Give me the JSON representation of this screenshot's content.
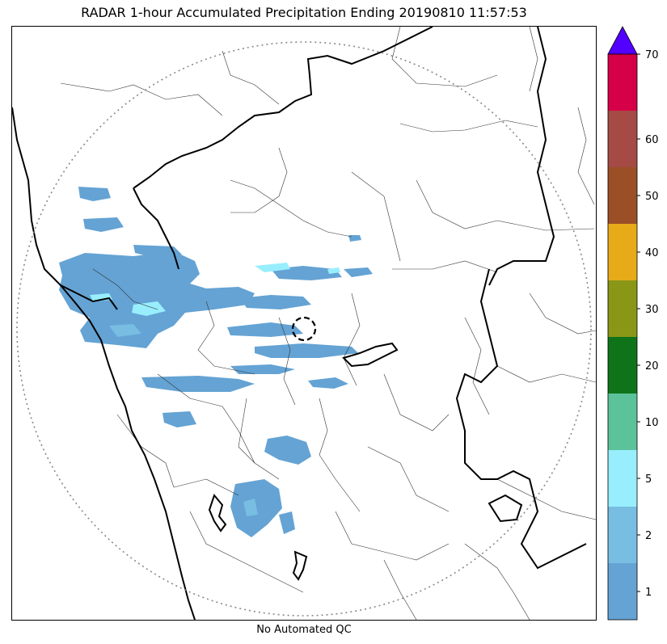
{
  "title": "RADAR 1-hour Accumulated Precipitation Ending 20190810 11:57:53",
  "footer": "No Automated QC",
  "colorbar": {
    "levels": [
      "1",
      "2",
      "5",
      "10",
      "20",
      "30",
      "40",
      "50",
      "60",
      "70"
    ],
    "colors": [
      "#64a3d4",
      "#78bde2",
      "#98eefd",
      "#5cc29a",
      "#0f7419",
      "#8a9716",
      "#e7aa19",
      "#9a4f26",
      "#a54a45",
      "#d50047"
    ],
    "extend_color": "#5200ff"
  }
}
